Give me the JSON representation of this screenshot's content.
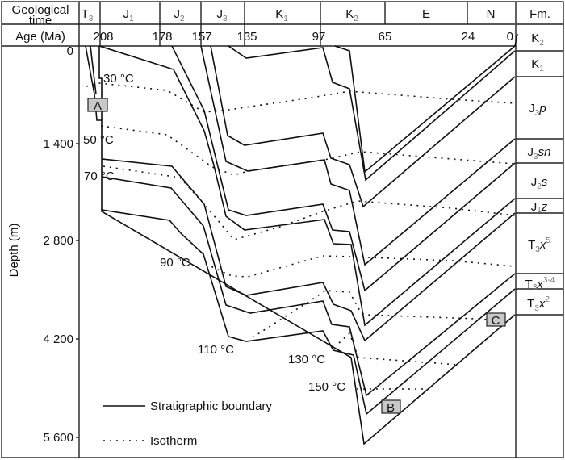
{
  "header": {
    "geological_time_line1": "Geological",
    "geological_time_line2": "time",
    "age_label": "Age (Ma)",
    "formation_label": "Fm."
  },
  "periods": [
    {
      "base": "T",
      "sub": "3"
    },
    {
      "base": "J",
      "sub": "1"
    },
    {
      "base": "J",
      "sub": "2"
    },
    {
      "base": "J",
      "sub": "3"
    },
    {
      "base": "K",
      "sub": "1"
    },
    {
      "base": "K",
      "sub": "2"
    },
    {
      "base": "E",
      "sub": ""
    },
    {
      "base": "N",
      "sub": ""
    }
  ],
  "ages": [
    "208",
    "178",
    "157",
    "135",
    "97",
    "65",
    "24",
    "0"
  ],
  "y_axis": {
    "label": "Depth (m)",
    "ticks": [
      "0",
      "1 400",
      "2 800",
      "4 200",
      "5 600"
    ]
  },
  "formations": [
    {
      "base": "K",
      "sub": "2",
      "it": "",
      "sup": ""
    },
    {
      "base": "K",
      "sub": "1",
      "it": "",
      "sup": ""
    },
    {
      "base": "J",
      "sub": "3",
      "it": "p",
      "sup": ""
    },
    {
      "base": "J",
      "sub": "3",
      "it": "sn",
      "sup": ""
    },
    {
      "base": "J",
      "sub": "2",
      "it": "s",
      "sup": ""
    },
    {
      "base": "J",
      "sub": "1",
      "it": "z",
      "sup": ""
    },
    {
      "base": "T",
      "sub": "3",
      "it": "x",
      "sup": "5"
    },
    {
      "base": "T",
      "sub": "3",
      "it": "x",
      "sup": "3-4"
    },
    {
      "base": "T",
      "sub": "3",
      "it": "x",
      "sup": "2"
    }
  ],
  "isotherms": [
    "30 °C",
    "50 °C",
    "70 °C",
    "90 °C",
    "110 °C",
    "130 °C",
    "150 °C"
  ],
  "points": [
    "A",
    "B",
    "C"
  ],
  "legend": {
    "boundary": "Stratigraphic boundary",
    "isotherm": "Isotherm"
  },
  "colors": {
    "line": "#111111",
    "point_fill": "#c8c8c8",
    "subscript": "#777777"
  }
}
